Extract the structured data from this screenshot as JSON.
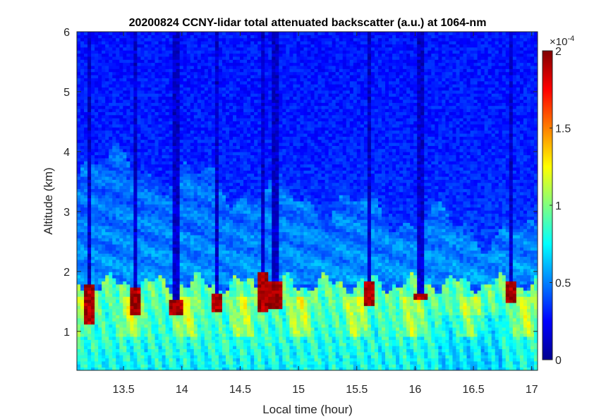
{
  "chart_data": {
    "type": "heatmap",
    "title": "20200824 CCNY-lidar total attenuated backscatter (a.u.) at 1064-nm",
    "xlabel": "Local time (hour)",
    "ylabel": "Altitude (km)",
    "xlim": [
      13.1,
      17.05
    ],
    "ylim": [
      0.35,
      6
    ],
    "xticks": [
      "13.5",
      "14",
      "14.5",
      "15",
      "15.5",
      "16",
      "16.5",
      "17"
    ],
    "xtick_values": [
      13.5,
      14,
      14.5,
      15,
      15.5,
      16,
      16.5,
      17
    ],
    "yticks": [
      "1",
      "2",
      "3",
      "4",
      "5",
      "6"
    ],
    "ytick_values": [
      1,
      2,
      3,
      4,
      5,
      6
    ],
    "colorbar": {
      "label": "",
      "exponent": "-4",
      "multiplier": "×10",
      "clim": [
        0,
        2
      ],
      "ticks": [
        "0",
        "0.5",
        "1",
        "1.5",
        "2"
      ],
      "tick_values": [
        0,
        0.5,
        1,
        1.5,
        2
      ],
      "colormap": "jet"
    },
    "features": {
      "boundary_layer_top_km": 1.8,
      "aerosol_residual_layer_km": [
        2.0,
        3.9
      ],
      "cloud_events": [
        {
          "time": 13.2,
          "base_km": 1.1,
          "top_km": 1.8
        },
        {
          "time": 13.6,
          "base_km": 1.3,
          "top_km": 1.75
        },
        {
          "time": 13.95,
          "base_km": 1.3,
          "top_km": 1.55
        },
        {
          "time": 14.3,
          "base_km": 1.35,
          "top_km": 1.65
        },
        {
          "time": 14.7,
          "base_km": 1.35,
          "top_km": 2.0
        },
        {
          "time": 14.8,
          "base_km": 1.4,
          "top_km": 1.85
        },
        {
          "time": 15.6,
          "base_km": 1.45,
          "top_km": 1.85
        },
        {
          "time": 16.05,
          "base_km": 1.55,
          "top_km": 1.65
        },
        {
          "time": 16.82,
          "base_km": 1.5,
          "top_km": 1.85
        }
      ]
    }
  }
}
